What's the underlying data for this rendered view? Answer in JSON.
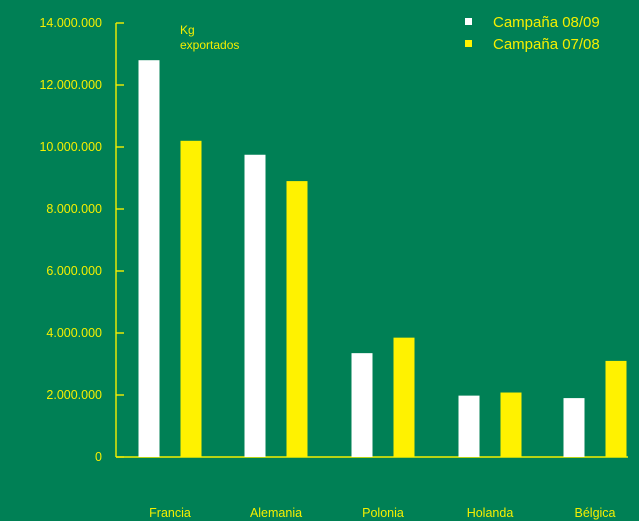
{
  "chart_data": {
    "type": "bar",
    "ylabel": "Kg exportados",
    "ylabel_lines": [
      "Kg",
      "exportados"
    ],
    "categories": [
      "Francia",
      "Alemania",
      "Polonia",
      "Holanda",
      "Bélgica"
    ],
    "series": [
      {
        "name": "Campaña 08/09",
        "color": "#ffffff",
        "values": [
          12800000,
          9750000,
          3350000,
          1980000,
          1900000
        ]
      },
      {
        "name": "Campaña 07/08",
        "color": "#fff200",
        "values": [
          10200000,
          8900000,
          3850000,
          2080000,
          3100000
        ]
      }
    ],
    "ylim": [
      0,
      14000000
    ],
    "yticks": [
      0,
      2000000,
      4000000,
      6000000,
      8000000,
      10000000,
      12000000,
      14000000
    ],
    "ytick_labels": [
      "0",
      "2.000.000",
      "4.000.000",
      "6.000.000",
      "8.000.000",
      "10.000.000",
      "12.000.000",
      "14.000.000"
    ],
    "legend_position": "top-right",
    "grid": false,
    "colors": {
      "background": "#008055",
      "axis": "#f5ef00",
      "text": "#f5ef00"
    }
  }
}
